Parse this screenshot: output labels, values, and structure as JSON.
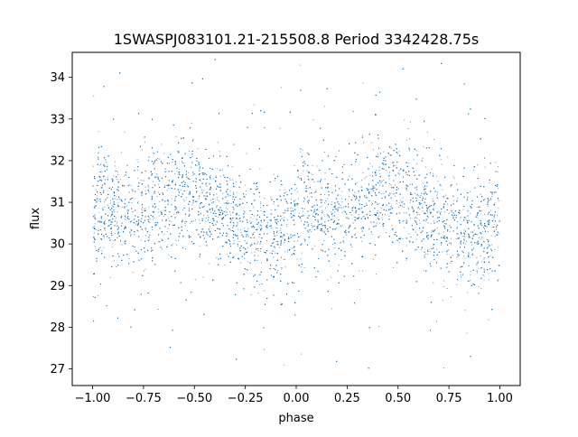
{
  "chart_data": {
    "type": "scatter",
    "title": "1SWASPJ083101.21-215508.8 Period 3342428.75s",
    "xlabel": "phase",
    "ylabel": "flux",
    "xlim": [
      -1.1,
      1.1
    ],
    "ylim": [
      26.6,
      34.6
    ],
    "x_ticks": [
      -1.0,
      -0.75,
      -0.5,
      -0.25,
      0.0,
      0.25,
      0.5,
      0.75,
      1.0
    ],
    "x_tick_labels": [
      "−1.00",
      "−0.75",
      "−0.50",
      "−0.25",
      "0.00",
      "0.25",
      "0.50",
      "0.75",
      "1.00"
    ],
    "y_ticks": [
      27,
      28,
      29,
      30,
      31,
      32,
      33,
      34
    ],
    "y_tick_labels": [
      "27",
      "28",
      "29",
      "30",
      "31",
      "32",
      "33",
      "34"
    ],
    "grid": false,
    "legend": "none",
    "marker_color": "#1f77b4",
    "series": [
      {
        "phase_range": [
          -1.0,
          1.0
        ],
        "trend_points": [
          {
            "x": -1.0,
            "y": 30.5
          },
          {
            "x": -0.95,
            "y": 30.9
          },
          {
            "x": -0.75,
            "y": 30.7
          },
          {
            "x": -0.55,
            "y": 31.3
          },
          {
            "x": -0.4,
            "y": 30.9
          },
          {
            "x": -0.2,
            "y": 30.3
          },
          {
            "x": -0.1,
            "y": 30.2
          },
          {
            "x": 0.0,
            "y": 30.5
          },
          {
            "x": 0.05,
            "y": 30.9
          },
          {
            "x": 0.25,
            "y": 30.7
          },
          {
            "x": 0.45,
            "y": 31.3
          },
          {
            "x": 0.6,
            "y": 30.9
          },
          {
            "x": 0.8,
            "y": 30.3
          },
          {
            "x": 0.9,
            "y": 30.2
          },
          {
            "x": 1.0,
            "y": 30.5
          }
        ],
        "typical_spread": 0.65,
        "outlier_range": [
          27.0,
          34.5
        ]
      }
    ]
  }
}
